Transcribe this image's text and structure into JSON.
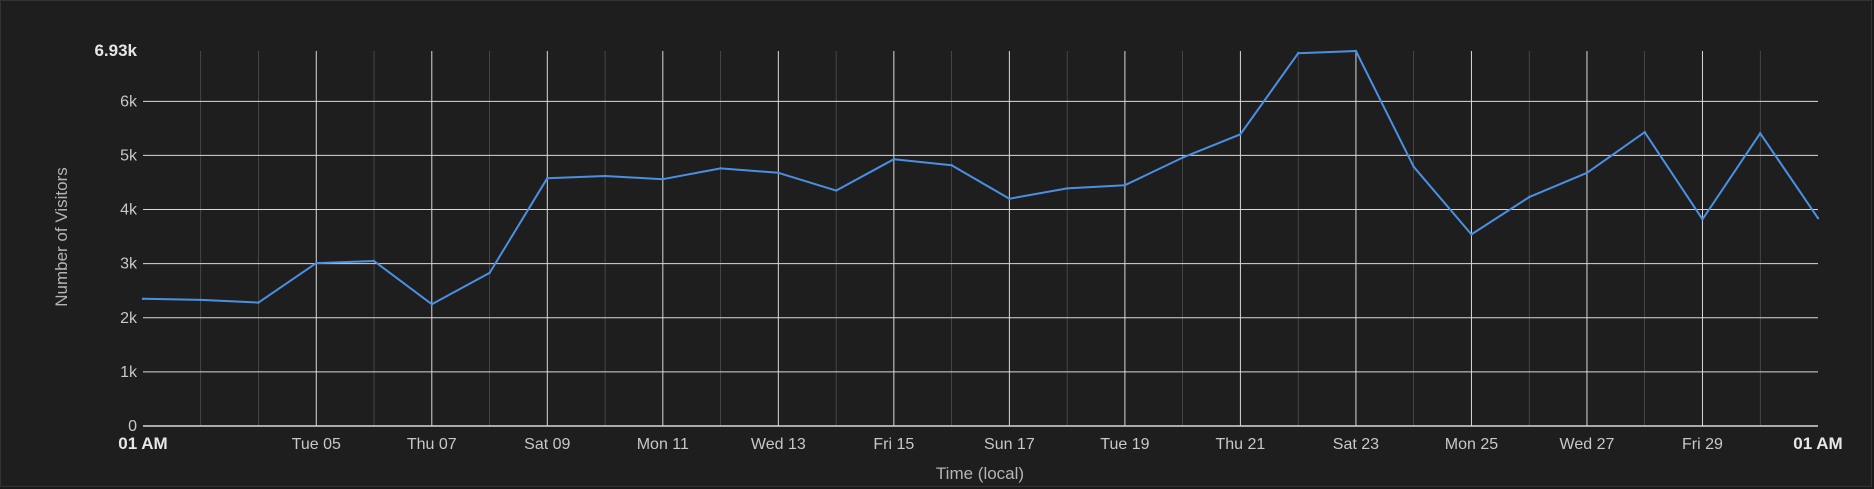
{
  "chart_data": {
    "type": "line",
    "title": "",
    "xlabel": "Time (local)",
    "ylabel": "Number of Visitors",
    "ylim": [
      0,
      6930
    ],
    "y_ticks": [
      {
        "value": 0,
        "label": "0",
        "bold": false
      },
      {
        "value": 1000,
        "label": "1k",
        "bold": false
      },
      {
        "value": 2000,
        "label": "2k",
        "bold": false
      },
      {
        "value": 3000,
        "label": "3k",
        "bold": false
      },
      {
        "value": 4000,
        "label": "4k",
        "bold": false
      },
      {
        "value": 5000,
        "label": "5k",
        "bold": false
      },
      {
        "value": 6000,
        "label": "6k",
        "bold": false
      },
      {
        "value": 6930,
        "label": "6.93k",
        "bold": true
      }
    ],
    "x_ticks": [
      {
        "day": 0,
        "label": "01 AM",
        "bold": true
      },
      {
        "day": 3,
        "label": "Tue 05",
        "bold": false
      },
      {
        "day": 5,
        "label": "Thu 07",
        "bold": false
      },
      {
        "day": 7,
        "label": "Sat 09",
        "bold": false
      },
      {
        "day": 9,
        "label": "Mon 11",
        "bold": false
      },
      {
        "day": 11,
        "label": "Wed 13",
        "bold": false
      },
      {
        "day": 13,
        "label": "Fri 15",
        "bold": false
      },
      {
        "day": 15,
        "label": "Sun 17",
        "bold": false
      },
      {
        "day": 17,
        "label": "Tue 19",
        "bold": false
      },
      {
        "day": 19,
        "label": "Thu 21",
        "bold": false
      },
      {
        "day": 21,
        "label": "Sat 23",
        "bold": false
      },
      {
        "day": 23,
        "label": "Mon 25",
        "bold": false
      },
      {
        "day": 25,
        "label": "Wed 27",
        "bold": false
      },
      {
        "day": 27,
        "label": "Fri 29",
        "bold": false
      },
      {
        "day": 29,
        "label": "01 AM",
        "bold": true
      }
    ],
    "series": [
      {
        "color": "#4a90e2",
        "points": [
          [
            0,
            2350
          ],
          [
            1,
            2330
          ],
          [
            2,
            2280
          ],
          [
            3,
            3010
          ],
          [
            4,
            3050
          ],
          [
            5,
            2250
          ],
          [
            6,
            2830
          ],
          [
            7,
            4580
          ],
          [
            8,
            4620
          ],
          [
            9,
            4560
          ],
          [
            10,
            4760
          ],
          [
            11,
            4680
          ],
          [
            12,
            4350
          ],
          [
            13,
            4930
          ],
          [
            14,
            4820
          ],
          [
            15,
            4200
          ],
          [
            16,
            4390
          ],
          [
            17,
            4450
          ],
          [
            18,
            4960
          ],
          [
            19,
            5390
          ],
          [
            20,
            6890
          ],
          [
            21,
            6930
          ],
          [
            22,
            4790
          ],
          [
            23,
            3540
          ],
          [
            24,
            4230
          ],
          [
            25,
            4680
          ],
          [
            26,
            5430
          ],
          [
            27,
            3820
          ],
          [
            28,
            5410
          ],
          [
            29,
            3840
          ]
        ]
      }
    ],
    "grid": true,
    "legend": "none"
  }
}
